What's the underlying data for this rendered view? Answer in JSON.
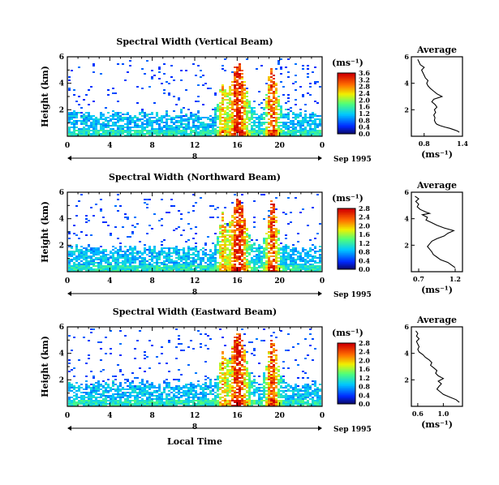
{
  "chart_data": [
    {
      "type": "heatmap",
      "title": "Spectral Width (Vertical Beam)",
      "ylabel": "Height (km)",
      "xlim": [
        0,
        24
      ],
      "ylim": [
        0,
        6
      ],
      "x_ticks": [
        "0",
        "4",
        "8",
        "12",
        "16",
        "20",
        "0"
      ],
      "y_ticks": [
        "2",
        "4",
        "6"
      ],
      "date_marker": "8",
      "date_label": "Sep 1995",
      "colorbar": {
        "unit": "(ms⁻¹)",
        "ticks": [
          "0.0",
          "0.4",
          "0.8",
          "1.2",
          "1.6",
          "2.0",
          "2.4",
          "2.8",
          "3.2",
          "3.6"
        ],
        "range": [
          0,
          3.6
        ]
      },
      "average": {
        "title": "Average",
        "xlabel": "(ms⁻¹)",
        "x_ticks": [
          "0.8",
          "1.4"
        ],
        "xlim": [
          0.6,
          1.4
        ],
        "y_ticks": [
          "2",
          "4",
          "6"
        ],
        "profile": [
          [
            1.35,
            0.3
          ],
          [
            1.32,
            0.4
          ],
          [
            1.26,
            0.5
          ],
          [
            1.2,
            0.6
          ],
          [
            1.12,
            0.7
          ],
          [
            1.05,
            0.8
          ],
          [
            1.0,
            0.9
          ],
          [
            0.98,
            1.0
          ],
          [
            0.96,
            1.2
          ],
          [
            0.97,
            1.4
          ],
          [
            0.95,
            1.6
          ],
          [
            0.98,
            1.8
          ],
          [
            0.96,
            2.0
          ],
          [
            1.0,
            2.2
          ],
          [
            0.97,
            2.4
          ],
          [
            0.92,
            2.6
          ],
          [
            0.95,
            2.8
          ],
          [
            1.08,
            3.0
          ],
          [
            1.0,
            3.2
          ],
          [
            0.95,
            3.4
          ],
          [
            0.9,
            3.6
          ],
          [
            0.86,
            3.8
          ],
          [
            0.84,
            4.0
          ],
          [
            0.86,
            4.2
          ],
          [
            0.82,
            4.4
          ],
          [
            0.8,
            4.6
          ],
          [
            0.78,
            4.8
          ],
          [
            0.76,
            5.0
          ],
          [
            0.8,
            5.2
          ],
          [
            0.74,
            5.4
          ],
          [
            0.72,
            5.6
          ],
          [
            0.7,
            5.8
          ]
        ]
      }
    },
    {
      "type": "heatmap",
      "title": "Spectral Width (Northward Beam)",
      "ylabel": "Height (km)",
      "xlim": [
        0,
        24
      ],
      "ylim": [
        0,
        6
      ],
      "x_ticks": [
        "0",
        "4",
        "8",
        "12",
        "16",
        "20",
        "0"
      ],
      "y_ticks": [
        "2",
        "4",
        "6"
      ],
      "date_marker": "8",
      "date_label": "Sep 1995",
      "colorbar": {
        "unit": "(ms⁻¹)",
        "ticks": [
          "0.0",
          "0.4",
          "0.8",
          "1.2",
          "1.6",
          "2.0",
          "2.4",
          "2.8"
        ],
        "range": [
          0,
          2.8
        ]
      },
      "average": {
        "title": "Average",
        "xlabel": "(ms⁻¹)",
        "x_ticks": [
          "0.7",
          "1.2"
        ],
        "xlim": [
          0.6,
          1.3
        ],
        "y_ticks": [
          "2",
          "4",
          "6"
        ],
        "profile": [
          [
            1.2,
            0.3
          ],
          [
            1.15,
            0.5
          ],
          [
            1.1,
            0.7
          ],
          [
            1.0,
            0.9
          ],
          [
            0.95,
            1.1
          ],
          [
            0.9,
            1.3
          ],
          [
            0.88,
            1.5
          ],
          [
            0.85,
            1.7
          ],
          [
            0.82,
            1.9
          ],
          [
            0.85,
            2.1
          ],
          [
            0.88,
            2.3
          ],
          [
            0.95,
            2.5
          ],
          [
            1.05,
            2.7
          ],
          [
            1.1,
            2.9
          ],
          [
            1.18,
            3.1
          ],
          [
            1.05,
            3.3
          ],
          [
            0.95,
            3.5
          ],
          [
            0.88,
            3.7
          ],
          [
            0.8,
            3.9
          ],
          [
            0.82,
            4.1
          ],
          [
            0.75,
            4.3
          ],
          [
            0.85,
            4.4
          ],
          [
            0.8,
            4.5
          ],
          [
            0.72,
            4.7
          ],
          [
            0.68,
            4.9
          ],
          [
            0.7,
            5.1
          ],
          [
            0.66,
            5.3
          ],
          [
            0.7,
            5.5
          ],
          [
            0.65,
            5.7
          ]
        ]
      }
    },
    {
      "type": "heatmap",
      "title": "Spectral Width (Eastward Beam)",
      "ylabel": "Height (km)",
      "xlabel": "Local Time",
      "xlim": [
        0,
        24
      ],
      "ylim": [
        0,
        6
      ],
      "x_ticks": [
        "0",
        "4",
        "8",
        "12",
        "16",
        "20",
        "0"
      ],
      "y_ticks": [
        "2",
        "4",
        "6"
      ],
      "date_marker": "8",
      "date_label": "Sep 1995",
      "colorbar": {
        "unit": "(ms⁻¹)",
        "ticks": [
          "0.0",
          "0.4",
          "0.8",
          "1.2",
          "1.6",
          "2.0",
          "2.4",
          "2.8"
        ],
        "range": [
          0,
          2.8
        ]
      },
      "average": {
        "title": "Average",
        "xlabel": "(ms⁻¹)",
        "x_ticks": [
          "0.6",
          "1.0"
        ],
        "xlim": [
          0.5,
          1.3
        ],
        "y_ticks": [
          "2",
          "4",
          "6"
        ],
        "profile": [
          [
            1.25,
            0.3
          ],
          [
            1.2,
            0.5
          ],
          [
            1.1,
            0.7
          ],
          [
            1.0,
            0.9
          ],
          [
            0.95,
            1.1
          ],
          [
            0.9,
            1.3
          ],
          [
            0.93,
            1.5
          ],
          [
            0.97,
            1.7
          ],
          [
            0.92,
            1.9
          ],
          [
            1.0,
            2.1
          ],
          [
            0.92,
            2.3
          ],
          [
            0.88,
            2.5
          ],
          [
            0.9,
            2.7
          ],
          [
            0.85,
            2.9
          ],
          [
            0.8,
            3.1
          ],
          [
            0.82,
            3.3
          ],
          [
            0.78,
            3.5
          ],
          [
            0.72,
            3.7
          ],
          [
            0.68,
            3.9
          ],
          [
            0.62,
            4.1
          ],
          [
            0.6,
            4.3
          ],
          [
            0.62,
            4.5
          ],
          [
            0.6,
            4.7
          ],
          [
            0.58,
            4.9
          ],
          [
            0.62,
            5.1
          ],
          [
            0.58,
            5.3
          ],
          [
            0.6,
            5.5
          ],
          [
            0.57,
            5.7
          ]
        ]
      }
    }
  ]
}
